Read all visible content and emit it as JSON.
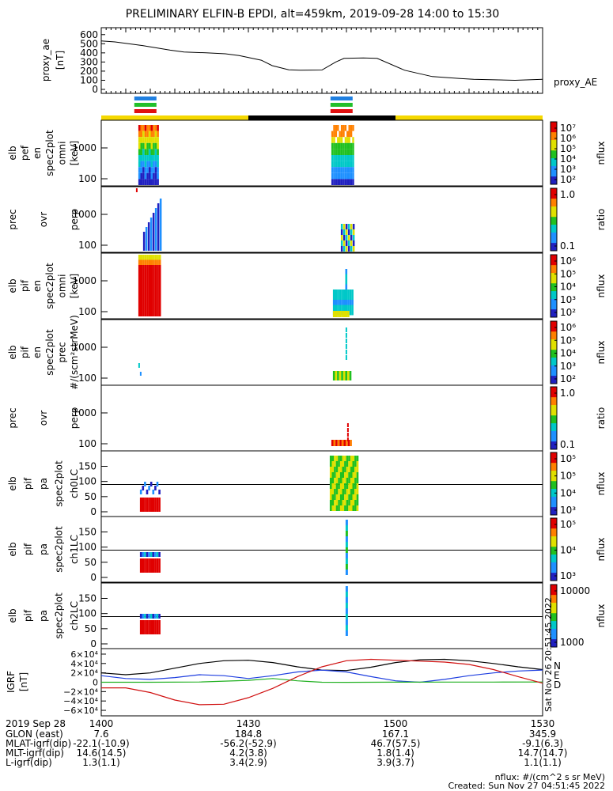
{
  "title": "PRELIMINARY ELFIN-B EPDI, alt=459km, 2019-09-28 14:00 to 15:30",
  "colors": {
    "yellow": "#f5d800",
    "black": "#000000",
    "blue": "#1f7fe0",
    "green": "#22c02a",
    "red": "#e01010"
  },
  "chart_data": [
    {
      "id": "proxy_ae",
      "type": "line",
      "ylabel": [
        "proxy_ae",
        "[nT]"
      ],
      "series_label": "proxy_AE",
      "yticks": [
        "600",
        "500",
        "400",
        "300",
        "200",
        "100",
        "0"
      ],
      "ylim": [
        0,
        650
      ],
      "x_min": [
        0,
        0.05,
        0.15,
        0.25,
        0.3,
        0.38,
        0.45,
        0.5,
        0.58,
        0.62,
        0.68,
        0.72,
        0.8,
        0.85,
        0.88,
        0.95,
        1.0,
        1.1,
        1.2,
        1.3,
        1.35,
        1.5,
        1.6
      ],
      "values": [
        530,
        520,
        480,
        430,
        410,
        400,
        390,
        370,
        320,
        260,
        215,
        210,
        212,
        300,
        340,
        345,
        340,
        210,
        140,
        120,
        110,
        100,
        110
      ]
    },
    {
      "id": "elb_pef_en_spec2plot_omni",
      "type": "heatmap",
      "ylabel": [
        "elb",
        "pef",
        "en",
        "spec2plot",
        "omni",
        "[keV]"
      ],
      "yticks": [
        "1000",
        "100"
      ],
      "yscale": "log",
      "colorbar": {
        "label": "nflux",
        "ticks": [
          "10⁷",
          "10⁶",
          "10⁵",
          "10⁴",
          "10³",
          "10²"
        ]
      }
    },
    {
      "id": "prec_ovr_perp_1",
      "type": "heatmap",
      "ylabel": [
        "prec",
        "ovr",
        "perp"
      ],
      "yticks": [
        "1000",
        "100"
      ],
      "yscale": "log",
      "colorbar": {
        "label": "ratio",
        "ticks": [
          "1.0",
          "0.1"
        ]
      }
    },
    {
      "id": "elb_pif_en_spec2plot_omni",
      "type": "heatmap",
      "ylabel": [
        "elb",
        "pif",
        "en",
        "spec2plot",
        "omni",
        "[keV]"
      ],
      "yticks": [
        "1000",
        "100"
      ],
      "yscale": "log",
      "colorbar": {
        "label": "nflux",
        "ticks": [
          "10⁶",
          "10⁵",
          "10⁴",
          "10³",
          "10²"
        ]
      }
    },
    {
      "id": "elb_pif_en_spec2plot_prec",
      "type": "heatmap",
      "ylabel": [
        "elb",
        "pif",
        "en",
        "spec2plot",
        "prec",
        "#/(scm²strMeV)"
      ],
      "yticks": [
        "1000",
        "100"
      ],
      "yscale": "log",
      "colorbar": {
        "label": "nflux",
        "ticks": [
          "10⁶",
          "10⁵",
          "10⁴",
          "10³",
          "10²"
        ]
      }
    },
    {
      "id": "prec_ovr_perp_2",
      "type": "heatmap",
      "ylabel": [
        "prec",
        "ovr",
        "perp"
      ],
      "yticks": [
        "1000",
        "100"
      ],
      "yscale": "log",
      "colorbar": {
        "label": "ratio",
        "ticks": [
          "1.0",
          "0.1"
        ]
      }
    },
    {
      "id": "elb_pif_pa_spec2plot_ch0LC",
      "type": "heatmap",
      "ylabel": [
        "elb",
        "pif",
        "pa",
        "spec2plot",
        "ch0LC"
      ],
      "yticks": [
        "150",
        "100",
        "50",
        "0"
      ],
      "ylim": [
        0,
        180
      ],
      "colorbar": {
        "label": "nflux",
        "ticks": [
          "10⁵",
          "10⁵",
          "10⁴",
          "10³"
        ]
      }
    },
    {
      "id": "elb_pif_pa_spec2plot_ch1LC",
      "type": "heatmap",
      "ylabel": [
        "elb",
        "pif",
        "pa",
        "spec2plot",
        "ch1LC"
      ],
      "yticks": [
        "150",
        "100",
        "50",
        "0"
      ],
      "ylim": [
        0,
        180
      ],
      "colorbar": {
        "label": "nflux",
        "ticks": [
          "10⁵",
          "10⁴",
          "10³"
        ]
      }
    },
    {
      "id": "elb_pif_pa_spec2plot_ch2LC",
      "type": "heatmap",
      "ylabel": [
        "elb",
        "pif",
        "pa",
        "spec2plot",
        "ch2LC"
      ],
      "yticks": [
        "150",
        "100",
        "50",
        "0"
      ],
      "ylim": [
        0,
        180
      ],
      "colorbar": {
        "label": "nflux",
        "ticks": [
          "10000",
          "1000"
        ]
      }
    },
    {
      "id": "igrf",
      "type": "line",
      "ylabel": [
        "IGRF",
        "[nT]"
      ],
      "yticks": [
        "6×10⁴",
        "4×10⁴",
        "2×10⁴",
        "0",
        "−2×10⁴",
        "−4×10⁴",
        "−6×10⁴"
      ],
      "ylim": [
        -65000,
        65000
      ],
      "legend": [
        "N",
        "E",
        "D"
      ],
      "series": [
        {
          "color": "#000000",
          "x_min": [
            0,
            5,
            10,
            15,
            20,
            25,
            30,
            35,
            40,
            45,
            50,
            55,
            60,
            65,
            70,
            75,
            80,
            85,
            90
          ],
          "values": [
            20000,
            16000,
            20000,
            30000,
            40000,
            46000,
            47000,
            42000,
            33000,
            26000,
            25000,
            32000,
            42000,
            48000,
            49000,
            46000,
            40000,
            33000,
            27000
          ]
        },
        {
          "color": "#1f3fe0",
          "x_min": [
            0,
            5,
            10,
            15,
            20,
            25,
            30,
            35,
            40,
            45,
            50,
            55,
            60,
            65,
            70,
            75,
            80,
            85,
            90
          ],
          "values": [
            14000,
            8000,
            6000,
            10000,
            16000,
            14000,
            8000,
            14000,
            22000,
            26000,
            22000,
            12000,
            3000,
            0,
            6000,
            14000,
            20000,
            24000,
            26000
          ]
        },
        {
          "color": "#20b020",
          "x_min": [
            0,
            10,
            20,
            30,
            35,
            40,
            45,
            50,
            60,
            70,
            80,
            90
          ],
          "values": [
            0,
            0,
            500,
            4000,
            8000,
            3000,
            0,
            -200,
            200,
            300,
            400,
            500
          ]
        },
        {
          "color": "#d01010",
          "x_min": [
            0,
            5,
            10,
            15,
            20,
            25,
            30,
            35,
            40,
            45,
            50,
            55,
            60,
            65,
            70,
            75,
            80,
            85,
            90
          ],
          "values": [
            -12000,
            -12000,
            -22000,
            -38000,
            -48000,
            -47000,
            -33000,
            -13000,
            12000,
            33000,
            46000,
            49000,
            47000,
            45000,
            43000,
            38000,
            27000,
            12000,
            -2000
          ]
        }
      ]
    }
  ],
  "spectra_bars": {
    "groups": [
      {
        "x_min": 9,
        "colors": [
          "#1f7fe0",
          "#22c02a",
          "#e01010"
        ]
      },
      {
        "x_min": 49,
        "colors": [
          "#1f7fe0",
          "#22c02a",
          "#e01010"
        ]
      }
    ],
    "status": [
      {
        "from": 0,
        "to": 30,
        "color": "#f5d800"
      },
      {
        "from": 30,
        "to": 60,
        "color": "#000000"
      },
      {
        "from": 60,
        "to": 90,
        "color": "#f5d800"
      }
    ]
  },
  "time_axis": {
    "ticks": [
      "1400",
      "1430",
      "1500",
      "1530"
    ],
    "tick_min": [
      0,
      30,
      60,
      90
    ]
  },
  "footer_table": {
    "date": "2019 Sep 28",
    "rows": [
      {
        "label": "GLON (east)",
        "vals": [
          "7.6",
          "184.8",
          "167.1",
          "345.9"
        ]
      },
      {
        "label": "MLAT-igrf(dip)",
        "vals": [
          "-22.1(-10.9)",
          "-56.2(-52.9)",
          "46.7(57.5)",
          "-9.1(6.3)"
        ]
      },
      {
        "label": "MLT-igrf(dip)",
        "vals": [
          "14.6(14.5)",
          "4.2(3.8)",
          "1.8(1.4)",
          "14.7(14.7)"
        ]
      },
      {
        "label": "L-igrf(dip)",
        "vals": [
          "1.3(1.1)",
          "3.4(2.9)",
          "3.9(3.7)",
          "1.1(1.1)"
        ]
      }
    ]
  },
  "footer_notes": {
    "nflux": "nflux: #/(cm^2 s sr MeV)",
    "created": "Created: Sun Nov 27 04:51:45 2022",
    "side_stamp": "Sat Nov 26 20:51:45 2022"
  }
}
